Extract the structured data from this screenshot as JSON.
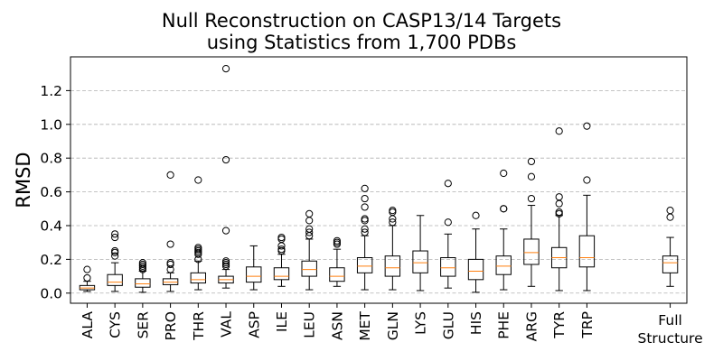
{
  "chart_data": {
    "type": "box",
    "title_line1": "Null Reconstruction on CASP13/14 Targets",
    "title_line2": "using Statistics from 1,700 PDBs",
    "xlabel": "",
    "ylabel": "RMSD",
    "ylim": [
      -0.06,
      1.4
    ],
    "yticks": [
      0.0,
      0.2,
      0.4,
      0.6,
      0.8,
      1.0,
      1.2
    ],
    "ytick_labels": [
      "0.0",
      "0.2",
      "0.4",
      "0.6",
      "0.8",
      "1.0",
      "1.2"
    ],
    "grid": "horizontal dashed",
    "box_color": "#000000",
    "median_color": "#ff7f0e",
    "grid_color": "#b0b0b0",
    "categories": [
      "ALA",
      "CYS",
      "SER",
      "PRO",
      "THR",
      "VAL",
      "ASP",
      "ILE",
      "LEU",
      "ASN",
      "MET",
      "GLN",
      "LYS",
      "GLU",
      "HIS",
      "PHE",
      "ARG",
      "TYR",
      "TRP",
      "Full Structure"
    ],
    "category_positions": [
      1,
      2,
      3,
      4,
      5,
      6,
      7,
      8,
      9,
      10,
      11,
      12,
      13,
      14,
      15,
      16,
      17,
      18,
      19,
      22
    ],
    "boxes": [
      {
        "label": "ALA",
        "whislo": 0.01,
        "q1": 0.02,
        "med": 0.03,
        "q3": 0.045,
        "whishi": 0.07,
        "fliers": [
          0.09,
          0.14
        ]
      },
      {
        "label": "CYS",
        "whislo": 0.01,
        "q1": 0.045,
        "med": 0.065,
        "q3": 0.11,
        "whishi": 0.18,
        "fliers": [
          0.22,
          0.24,
          0.25,
          0.33,
          0.35
        ]
      },
      {
        "label": "SER",
        "whislo": 0.005,
        "q1": 0.035,
        "med": 0.055,
        "q3": 0.085,
        "whishi": 0.13,
        "fliers": [
          0.14,
          0.15,
          0.16,
          0.17,
          0.18
        ]
      },
      {
        "label": "PRO",
        "whislo": 0.01,
        "q1": 0.05,
        "med": 0.065,
        "q3": 0.085,
        "whishi": 0.12,
        "fliers": [
          0.14,
          0.17,
          0.18,
          0.29,
          0.7
        ]
      },
      {
        "label": "THR",
        "whislo": 0.02,
        "q1": 0.06,
        "med": 0.08,
        "q3": 0.12,
        "whishi": 0.19,
        "fliers": [
          0.2,
          0.23,
          0.24,
          0.25,
          0.26,
          0.27,
          0.67
        ]
      },
      {
        "label": "VAL",
        "whislo": 0.03,
        "q1": 0.06,
        "med": 0.08,
        "q3": 0.1,
        "whishi": 0.14,
        "fliers": [
          0.16,
          0.17,
          0.18,
          0.19,
          0.37,
          0.79,
          1.33
        ]
      },
      {
        "label": "ASP",
        "whislo": 0.02,
        "q1": 0.065,
        "med": 0.1,
        "q3": 0.155,
        "whishi": 0.28,
        "fliers": []
      },
      {
        "label": "ILE",
        "whislo": 0.04,
        "q1": 0.08,
        "med": 0.1,
        "q3": 0.15,
        "whishi": 0.23,
        "fliers": [
          0.25,
          0.26,
          0.28,
          0.32,
          0.33
        ]
      },
      {
        "label": "LEU",
        "whislo": 0.02,
        "q1": 0.1,
        "med": 0.14,
        "q3": 0.19,
        "whishi": 0.32,
        "fliers": [
          0.34,
          0.36,
          0.38,
          0.43,
          0.47
        ]
      },
      {
        "label": "ASN",
        "whislo": 0.04,
        "q1": 0.07,
        "med": 0.1,
        "q3": 0.15,
        "whishi": 0.26,
        "fliers": [
          0.29,
          0.3,
          0.31
        ]
      },
      {
        "label": "MET",
        "whislo": 0.02,
        "q1": 0.12,
        "med": 0.16,
        "q3": 0.21,
        "whishi": 0.34,
        "fliers": [
          0.36,
          0.38,
          0.43,
          0.44,
          0.51,
          0.56,
          0.62
        ]
      },
      {
        "label": "GLN",
        "whislo": 0.02,
        "q1": 0.1,
        "med": 0.15,
        "q3": 0.22,
        "whishi": 0.4,
        "fliers": [
          0.42,
          0.44,
          0.48,
          0.49
        ]
      },
      {
        "label": "LYS",
        "whislo": 0.015,
        "q1": 0.12,
        "med": 0.18,
        "q3": 0.25,
        "whishi": 0.46,
        "fliers": []
      },
      {
        "label": "GLU",
        "whislo": 0.03,
        "q1": 0.1,
        "med": 0.15,
        "q3": 0.21,
        "whishi": 0.35,
        "fliers": [
          0.42,
          0.65
        ]
      },
      {
        "label": "HIS",
        "whislo": 0.005,
        "q1": 0.08,
        "med": 0.13,
        "q3": 0.2,
        "whishi": 0.38,
        "fliers": [
          0.46
        ]
      },
      {
        "label": "PHE",
        "whislo": 0.02,
        "q1": 0.11,
        "med": 0.16,
        "q3": 0.22,
        "whishi": 0.38,
        "fliers": [
          0.5,
          0.5,
          0.71
        ]
      },
      {
        "label": "ARG",
        "whislo": 0.04,
        "q1": 0.17,
        "med": 0.24,
        "q3": 0.32,
        "whishi": 0.52,
        "fliers": [
          0.56,
          0.69,
          0.78
        ]
      },
      {
        "label": "TYR",
        "whislo": 0.015,
        "q1": 0.15,
        "med": 0.21,
        "q3": 0.27,
        "whishi": 0.46,
        "fliers": [
          0.47,
          0.48,
          0.53,
          0.57,
          0.96
        ]
      },
      {
        "label": "TRP",
        "whislo": 0.015,
        "q1": 0.155,
        "med": 0.21,
        "q3": 0.34,
        "whishi": 0.58,
        "fliers": [
          0.67,
          0.99
        ]
      },
      {
        "label": "Full Structure",
        "whislo": 0.04,
        "q1": 0.12,
        "med": 0.18,
        "q3": 0.22,
        "whishi": 0.33,
        "fliers": [
          0.45,
          0.49
        ]
      }
    ]
  }
}
